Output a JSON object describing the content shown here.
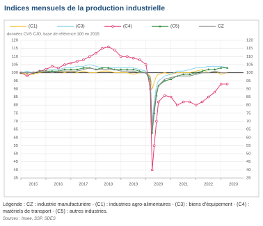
{
  "chart_data": {
    "type": "line",
    "title": "Indices mensuels de la production industrielle",
    "subtitle": "données CVS CJO, base de référence 100 en 2015",
    "x": [
      2015.0,
      2015.25,
      2015.5,
      2015.75,
      2016.0,
      2016.25,
      2016.5,
      2016.75,
      2017.0,
      2017.25,
      2017.5,
      2017.75,
      2018.0,
      2018.25,
      2018.5,
      2018.75,
      2019.0,
      2019.25,
      2019.5,
      2019.75,
      2020.0,
      2020.17,
      2020.25,
      2020.33,
      2020.42,
      2020.5,
      2020.75,
      2021.0,
      2021.25,
      2021.5,
      2021.75,
      2022.0,
      2022.25,
      2022.5,
      2022.75,
      2023.0,
      2023.25
    ],
    "series": [
      {
        "name": "(C1)",
        "color": "#f2c12e",
        "marker": "none",
        "values": [
          100,
          99,
          99,
          100,
          101,
          100,
          101,
          100,
          101,
          100,
          101,
          100,
          100,
          101,
          101,
          100,
          100,
          100,
          99,
          100,
          100,
          98,
          90,
          94,
          98,
          99,
          100,
          99,
          100,
          100,
          100,
          101,
          102,
          100,
          101,
          99,
          100
        ]
      },
      {
        "name": "(C3)",
        "color": "#7fd0ea",
        "marker": "none",
        "values": [
          100,
          101,
          100,
          101,
          102,
          102,
          102,
          103,
          103,
          104,
          104,
          105,
          104,
          103,
          103,
          103,
          103,
          103,
          103,
          102,
          101,
          95,
          70,
          82,
          92,
          95,
          98,
          99,
          101,
          101,
          102,
          103,
          103,
          104,
          104,
          104,
          103
        ]
      },
      {
        "name": "(C4)",
        "color": "#e0306a",
        "marker": "circle",
        "values": [
          100,
          98,
          100,
          101,
          102,
          104,
          103,
          105,
          106,
          107,
          108,
          110,
          112,
          115,
          116,
          114,
          110,
          110,
          109,
          108,
          105,
          90,
          40,
          55,
          70,
          82,
          86,
          85,
          80,
          82,
          82,
          80,
          82,
          85,
          88,
          93,
          93
        ]
      },
      {
        "name": "(C5)",
        "color": "#2e8b3a",
        "marker": "triangle",
        "values": [
          100,
          100,
          100,
          101,
          101,
          101,
          101,
          102,
          102,
          102,
          103,
          103,
          102,
          103,
          103,
          102,
          102,
          102,
          102,
          101,
          100,
          95,
          63,
          75,
          86,
          92,
          95,
          96,
          98,
          99,
          99,
          100,
          101,
          102,
          102,
          103,
          103
        ]
      },
      {
        "name": "CZ",
        "color": "#8c8c8c",
        "marker": "none",
        "values": [
          100,
          100,
          100,
          101,
          101,
          100,
          101,
          101,
          101,
          101,
          102,
          103,
          102,
          102,
          102,
          102,
          101,
          101,
          101,
          100,
          100,
          97,
          65,
          78,
          88,
          92,
          96,
          97,
          98,
          98,
          98,
          99,
          100,
          100,
          101,
          100,
          100
        ]
      }
    ],
    "xlim": [
      2015,
      2023.9
    ],
    "xticks": [
      2015,
      2016,
      2017,
      2018,
      2019,
      2020,
      2021,
      2022,
      2023
    ],
    "ylim": [
      35,
      120
    ],
    "yticks": [
      35,
      40,
      45,
      50,
      55,
      60,
      65,
      70,
      75,
      80,
      85,
      90,
      95,
      100,
      105,
      110,
      115,
      120
    ],
    "reference_line": 100,
    "grid": true,
    "legend_position": "top",
    "footnote": "Légende : CZ : industrie manufacturière - (C1) : industries agro-alimentaires - (C3) : biens d'équipement - (C4) : matériels de transport - (C5) : autres industries.",
    "source": "Sources : Insee, SSP, SDES"
  }
}
